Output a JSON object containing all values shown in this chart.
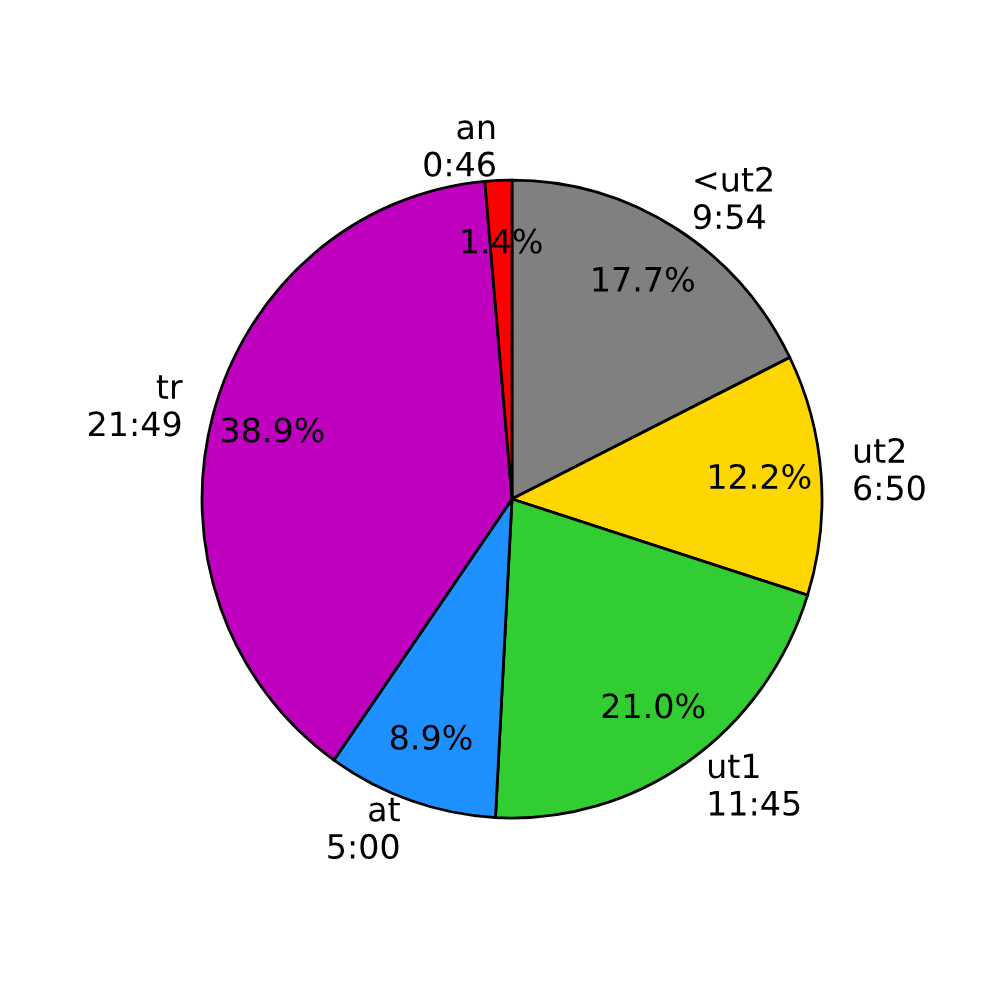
{
  "chart_data": {
    "type": "pie",
    "categories": [
      "<ut2\n9:54",
      "ut2\n6:50",
      "ut1\n11:45",
      "at\n5:00",
      "tr\n21:49",
      "an\n0:46"
    ],
    "values": [
      17.7,
      12.2,
      21.0,
      8.9,
      38.9,
      1.4
    ],
    "value_labels": [
      "17.7%",
      "12.2%",
      "21.0%",
      "8.9%",
      "38.9%",
      "1.4%"
    ],
    "colors": [
      "#808080",
      "#ffd700",
      "#32cd32",
      "#1e90ff",
      "#bf00bf",
      "#ff0000"
    ],
    "legend": false
  }
}
